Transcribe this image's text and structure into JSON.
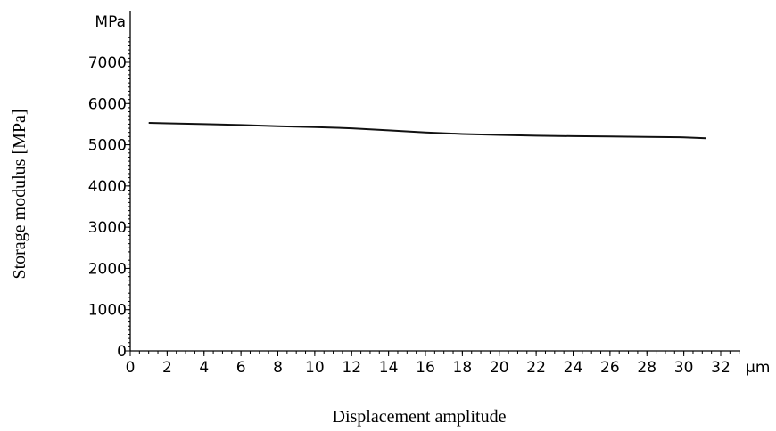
{
  "chart_data": {
    "type": "line",
    "title": "",
    "xlabel": "Displacement amplitude",
    "ylabel": "Storage modulus [MPa]",
    "x_unit": "μm",
    "y_unit": "MPa",
    "xlim": [
      0,
      33
    ],
    "ylim": [
      0,
      7600
    ],
    "x_ticks": [
      0,
      2,
      4,
      6,
      8,
      10,
      12,
      14,
      16,
      18,
      20,
      22,
      24,
      26,
      28,
      30,
      32
    ],
    "y_ticks": [
      0,
      1000,
      2000,
      3000,
      4000,
      5000,
      6000,
      7000
    ],
    "grid": false,
    "legend": "none",
    "series": [
      {
        "x": [
          1,
          2,
          4,
          6,
          8,
          10,
          12,
          14,
          16,
          18,
          20,
          22,
          24,
          26,
          28,
          30,
          31.2
        ],
        "y": [
          5530,
          5520,
          5500,
          5480,
          5450,
          5430,
          5400,
          5350,
          5300,
          5260,
          5240,
          5220,
          5210,
          5200,
          5190,
          5180,
          5160
        ]
      }
    ]
  }
}
